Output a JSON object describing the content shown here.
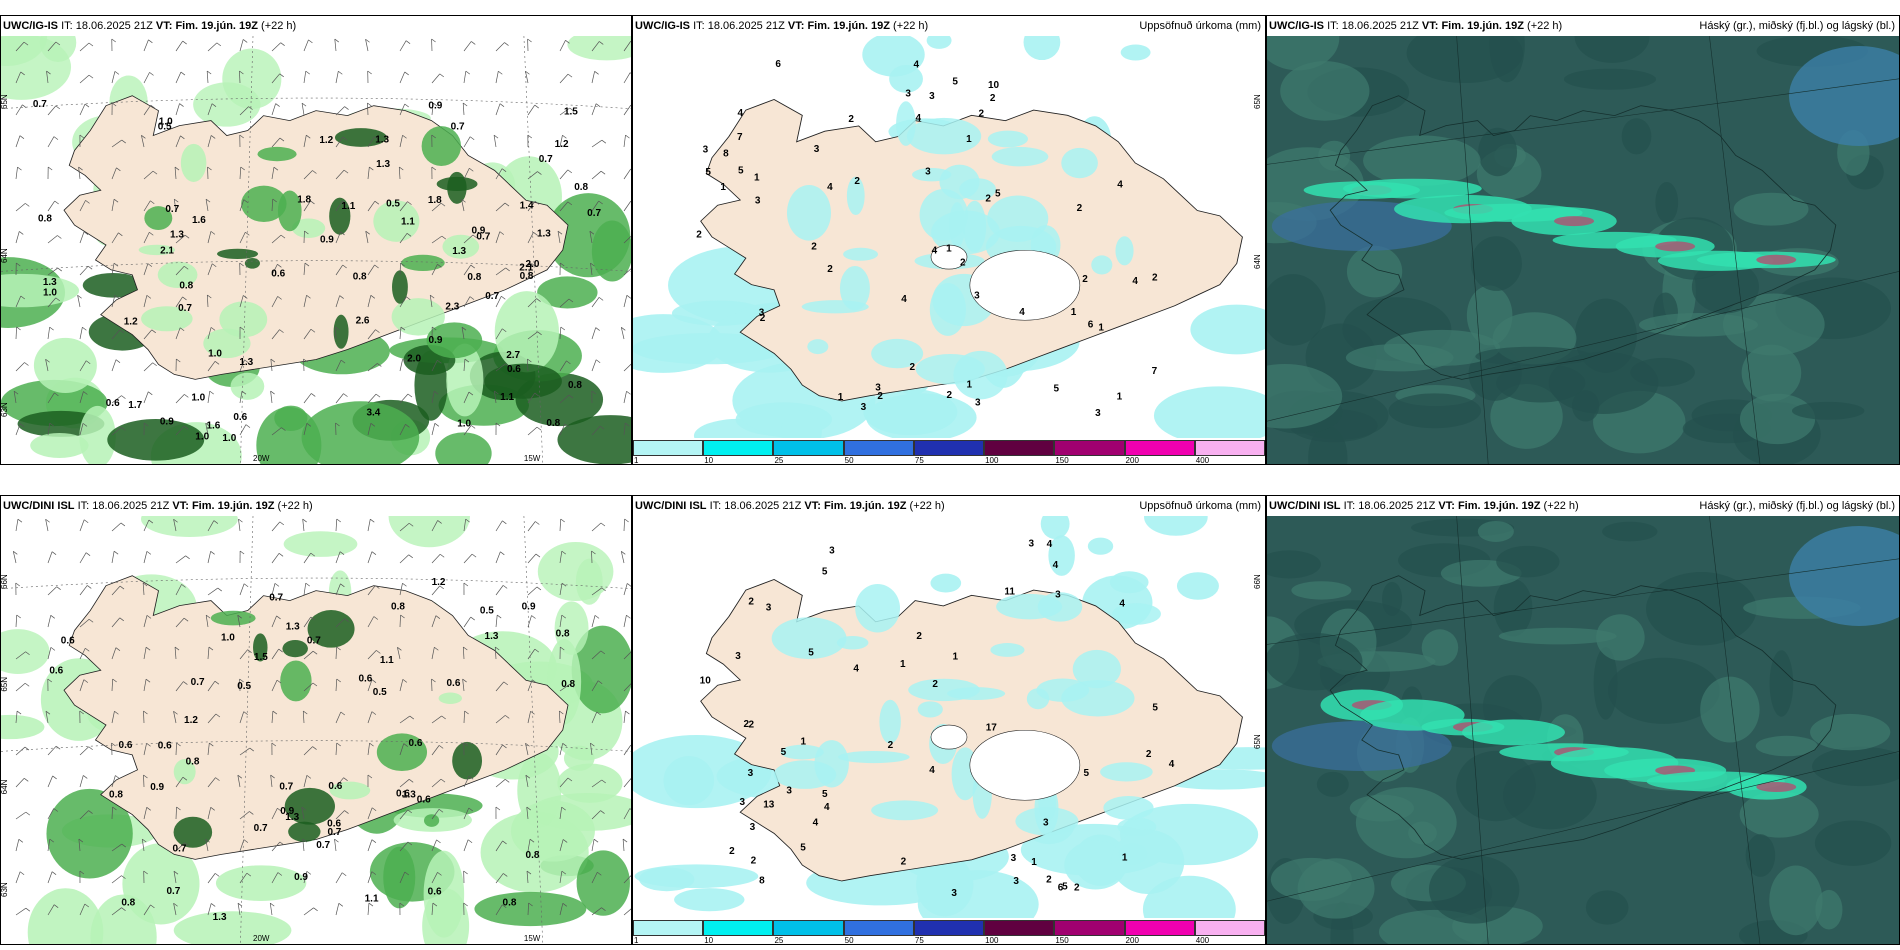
{
  "panels": {
    "top_left": {
      "model": "UWC/IG-IS",
      "it_label": "IT:",
      "it_value": "18.06.2025 21Z",
      "vt_label": "VT:",
      "vt_value": "Fim. 19.jún. 19Z",
      "lead": "(+22 h)",
      "right_title": "",
      "lat_labels": [
        "65N",
        "64N",
        "63N"
      ],
      "lon_labels": [
        "20W",
        "15W"
      ],
      "values": [
        "0.6",
        "2.3",
        "0.9",
        "0.7",
        "1.0",
        "0.8",
        "1.3",
        "1.1",
        "2.1",
        "1.6",
        "1.4",
        "1.3",
        "1.0",
        "2.0",
        "0.6",
        "1.0",
        "0.8",
        "0.7",
        "0.9",
        "0.8",
        "1.3",
        "0.9",
        "0.8",
        "1.2",
        "0.6",
        "0.5",
        "1.2",
        "0.7",
        "2.0",
        "0.8",
        "0.7",
        "1.0",
        "0.5",
        "1.3",
        "0.7",
        "1.2",
        "0.9",
        "1.0",
        "1.5",
        "1.7",
        "1.8",
        "1.3",
        "0.9",
        "1.0",
        "0.8",
        "1.3",
        "1.1",
        "2.7",
        "1.6",
        "2.6",
        "0.7",
        "2.1",
        "1.8",
        "0.8",
        "0.6",
        "0.7",
        "1.1",
        "1.0",
        "3.4",
        "0.7",
        "0.8",
        "1.3"
      ]
    },
    "top_mid": {
      "model": "UWC/IG-IS",
      "it_label": "IT:",
      "it_value": "18.06.2025 21Z",
      "vt_label": "VT:",
      "vt_value": "Fim. 19.jún. 19Z",
      "lead": "(+22 h)",
      "right_title": "Uppsöfnuð úrkoma (mm)",
      "lat_labels": [
        "65N",
        "64N"
      ],
      "values": [
        "1",
        "2",
        "2",
        "7",
        "2",
        "3",
        "4",
        "2",
        "4",
        "1",
        "2",
        "3",
        "2",
        "2",
        "2",
        "3",
        "6",
        "1",
        "2",
        "4",
        "3",
        "5",
        "2",
        "3",
        "4",
        "3",
        "1",
        "3",
        "2",
        "5",
        "4",
        "3",
        "2",
        "1",
        "3",
        "3",
        "2",
        "4",
        "2",
        "5",
        "4",
        "7",
        "6",
        "3",
        "1",
        "1",
        "5",
        "10",
        "5",
        "1",
        "2",
        "4",
        "3",
        "1",
        "8",
        "4",
        "2"
      ]
    },
    "top_right": {
      "model": "UWC/IG-IS",
      "it_label": "IT:",
      "it_value": "18.06.2025 21Z",
      "vt_label": "VT:",
      "vt_value": "Fim. 19.jún. 19Z",
      "lead": "(+22 h)",
      "right_title": "Háský (gr.), miðský (fj.bl.) og lágský (bl.)"
    },
    "bot_left": {
      "model": "UWC/DINI ISL",
      "it_label": "IT:",
      "it_value": "18.06.2025 21Z",
      "vt_label": "VT:",
      "vt_value": "Fim. 19.jún. 19Z",
      "lead": "(+22 h)",
      "right_title": "",
      "lat_labels": [
        "66N",
        "65N",
        "64N",
        "63N"
      ],
      "lon_labels": [
        "20W",
        "15W"
      ],
      "values": [
        "1.2",
        "0.7",
        "1.5",
        "0.6",
        "0.6",
        "0.6",
        "0.7",
        "0.6",
        "1.3",
        "0.7",
        "0.6",
        "1.3",
        "0.5",
        "1.3",
        "0.6",
        "1.1",
        "0.6",
        "1.0",
        "0.6",
        "0.8",
        "0.8",
        "0.7",
        "0.6",
        "0.8",
        "0.6",
        "0.6",
        "0.5",
        "0.7",
        "0.9",
        "0.8",
        "0.7",
        "0.6",
        "0.5",
        "1.1",
        "0.8",
        "0.8",
        "0.9",
        "1.2",
        "0.8",
        "0.7",
        "0.9",
        "0.7",
        "1.3",
        "0.7",
        "1.3",
        "0.8",
        "0.9"
      ]
    },
    "bot_mid": {
      "model": "UWC/DINI ISL",
      "it_label": "IT:",
      "it_value": "18.06.2025 21Z",
      "vt_label": "VT:",
      "vt_value": "Fim. 19.jún. 19Z",
      "lead": "(+22 h)",
      "right_title": "Uppsöfnuð úrkoma (mm)",
      "lat_labels": [
        "66N",
        "65N"
      ],
      "values": [
        "2",
        "2",
        "3",
        "3",
        "1",
        "3",
        "4",
        "2",
        "3",
        "3",
        "8",
        "4",
        "5",
        "5",
        "13",
        "11",
        "3",
        "4",
        "2",
        "3",
        "17",
        "5",
        "4",
        "2",
        "1",
        "3",
        "5",
        "3",
        "2",
        "4",
        "4",
        "3",
        "5",
        "1",
        "3",
        "5",
        "4",
        "3",
        "2",
        "6",
        "4",
        "5",
        "2",
        "1",
        "10",
        "2",
        "2",
        "5",
        "2",
        "3",
        "2",
        "1"
      ]
    },
    "bot_right": {
      "model": "UWC/DINI ISL",
      "it_label": "IT:",
      "it_value": "18.06.2025 21Z",
      "vt_label": "VT:",
      "vt_value": "Fim. 19.jún. 19Z",
      "lead": "(+22 h)",
      "right_title": "Háský (gr.), miðský (fj.bl.) og lágský (bl.)"
    }
  },
  "colorbar": {
    "ticks": [
      "1",
      "10",
      "25",
      "50",
      "75",
      "100",
      "150",
      "200",
      "400"
    ],
    "colors": [
      "#b4f5f5",
      "#00f0f0",
      "#00c0e8",
      "#3070e0",
      "#2030b0",
      "#600040",
      "#a00070",
      "#f000b0",
      "#f8b0f0"
    ]
  },
  "colors": {
    "land": "#f7e6d5",
    "rain_light": "#b6f2b6",
    "rain_mid": "#4caf50",
    "rain_dark": "#1b5e20",
    "accum": "#a8f2f2",
    "cloud_bg": "#2d5a57",
    "cloud_high": "#33e0b0",
    "cloud_mid": "#3a6fa0"
  }
}
